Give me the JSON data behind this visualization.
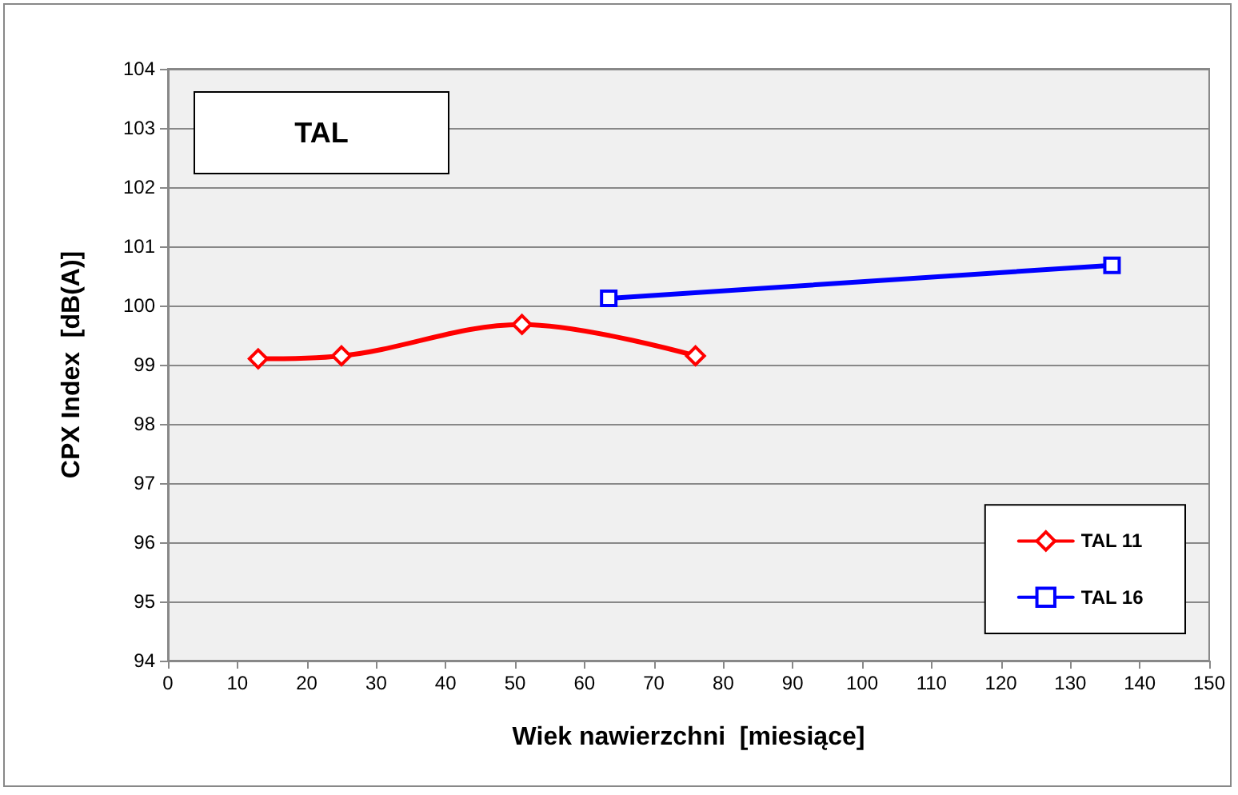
{
  "chart_data": {
    "type": "line",
    "title": "TAL",
    "xlabel": "Wiek nawierzchni  [miesiące]",
    "ylabel": "CPX Index  [dB(A)]",
    "series": [
      {
        "name": "TAL 11",
        "color": "#ff0000",
        "marker": "diamond",
        "x": [
          13,
          25,
          51,
          76
        ],
        "values": [
          99.1,
          99.15,
          99.68,
          99.15
        ]
      },
      {
        "name": "TAL 16",
        "color": "#0000ff",
        "marker": "square",
        "x": [
          63.5,
          136
        ],
        "values": [
          100.12,
          100.68
        ]
      }
    ],
    "xlim": [
      0,
      150
    ],
    "xticks": [
      0,
      10,
      20,
      30,
      40,
      50,
      60,
      70,
      80,
      90,
      100,
      110,
      120,
      130,
      140,
      150
    ],
    "ylim": [
      94,
      104
    ],
    "yticks": [
      94,
      95,
      96,
      97,
      98,
      99,
      100,
      101,
      102,
      103,
      104
    ],
    "grid": "y",
    "legend": "bottom right",
    "line_style": "solid"
  }
}
